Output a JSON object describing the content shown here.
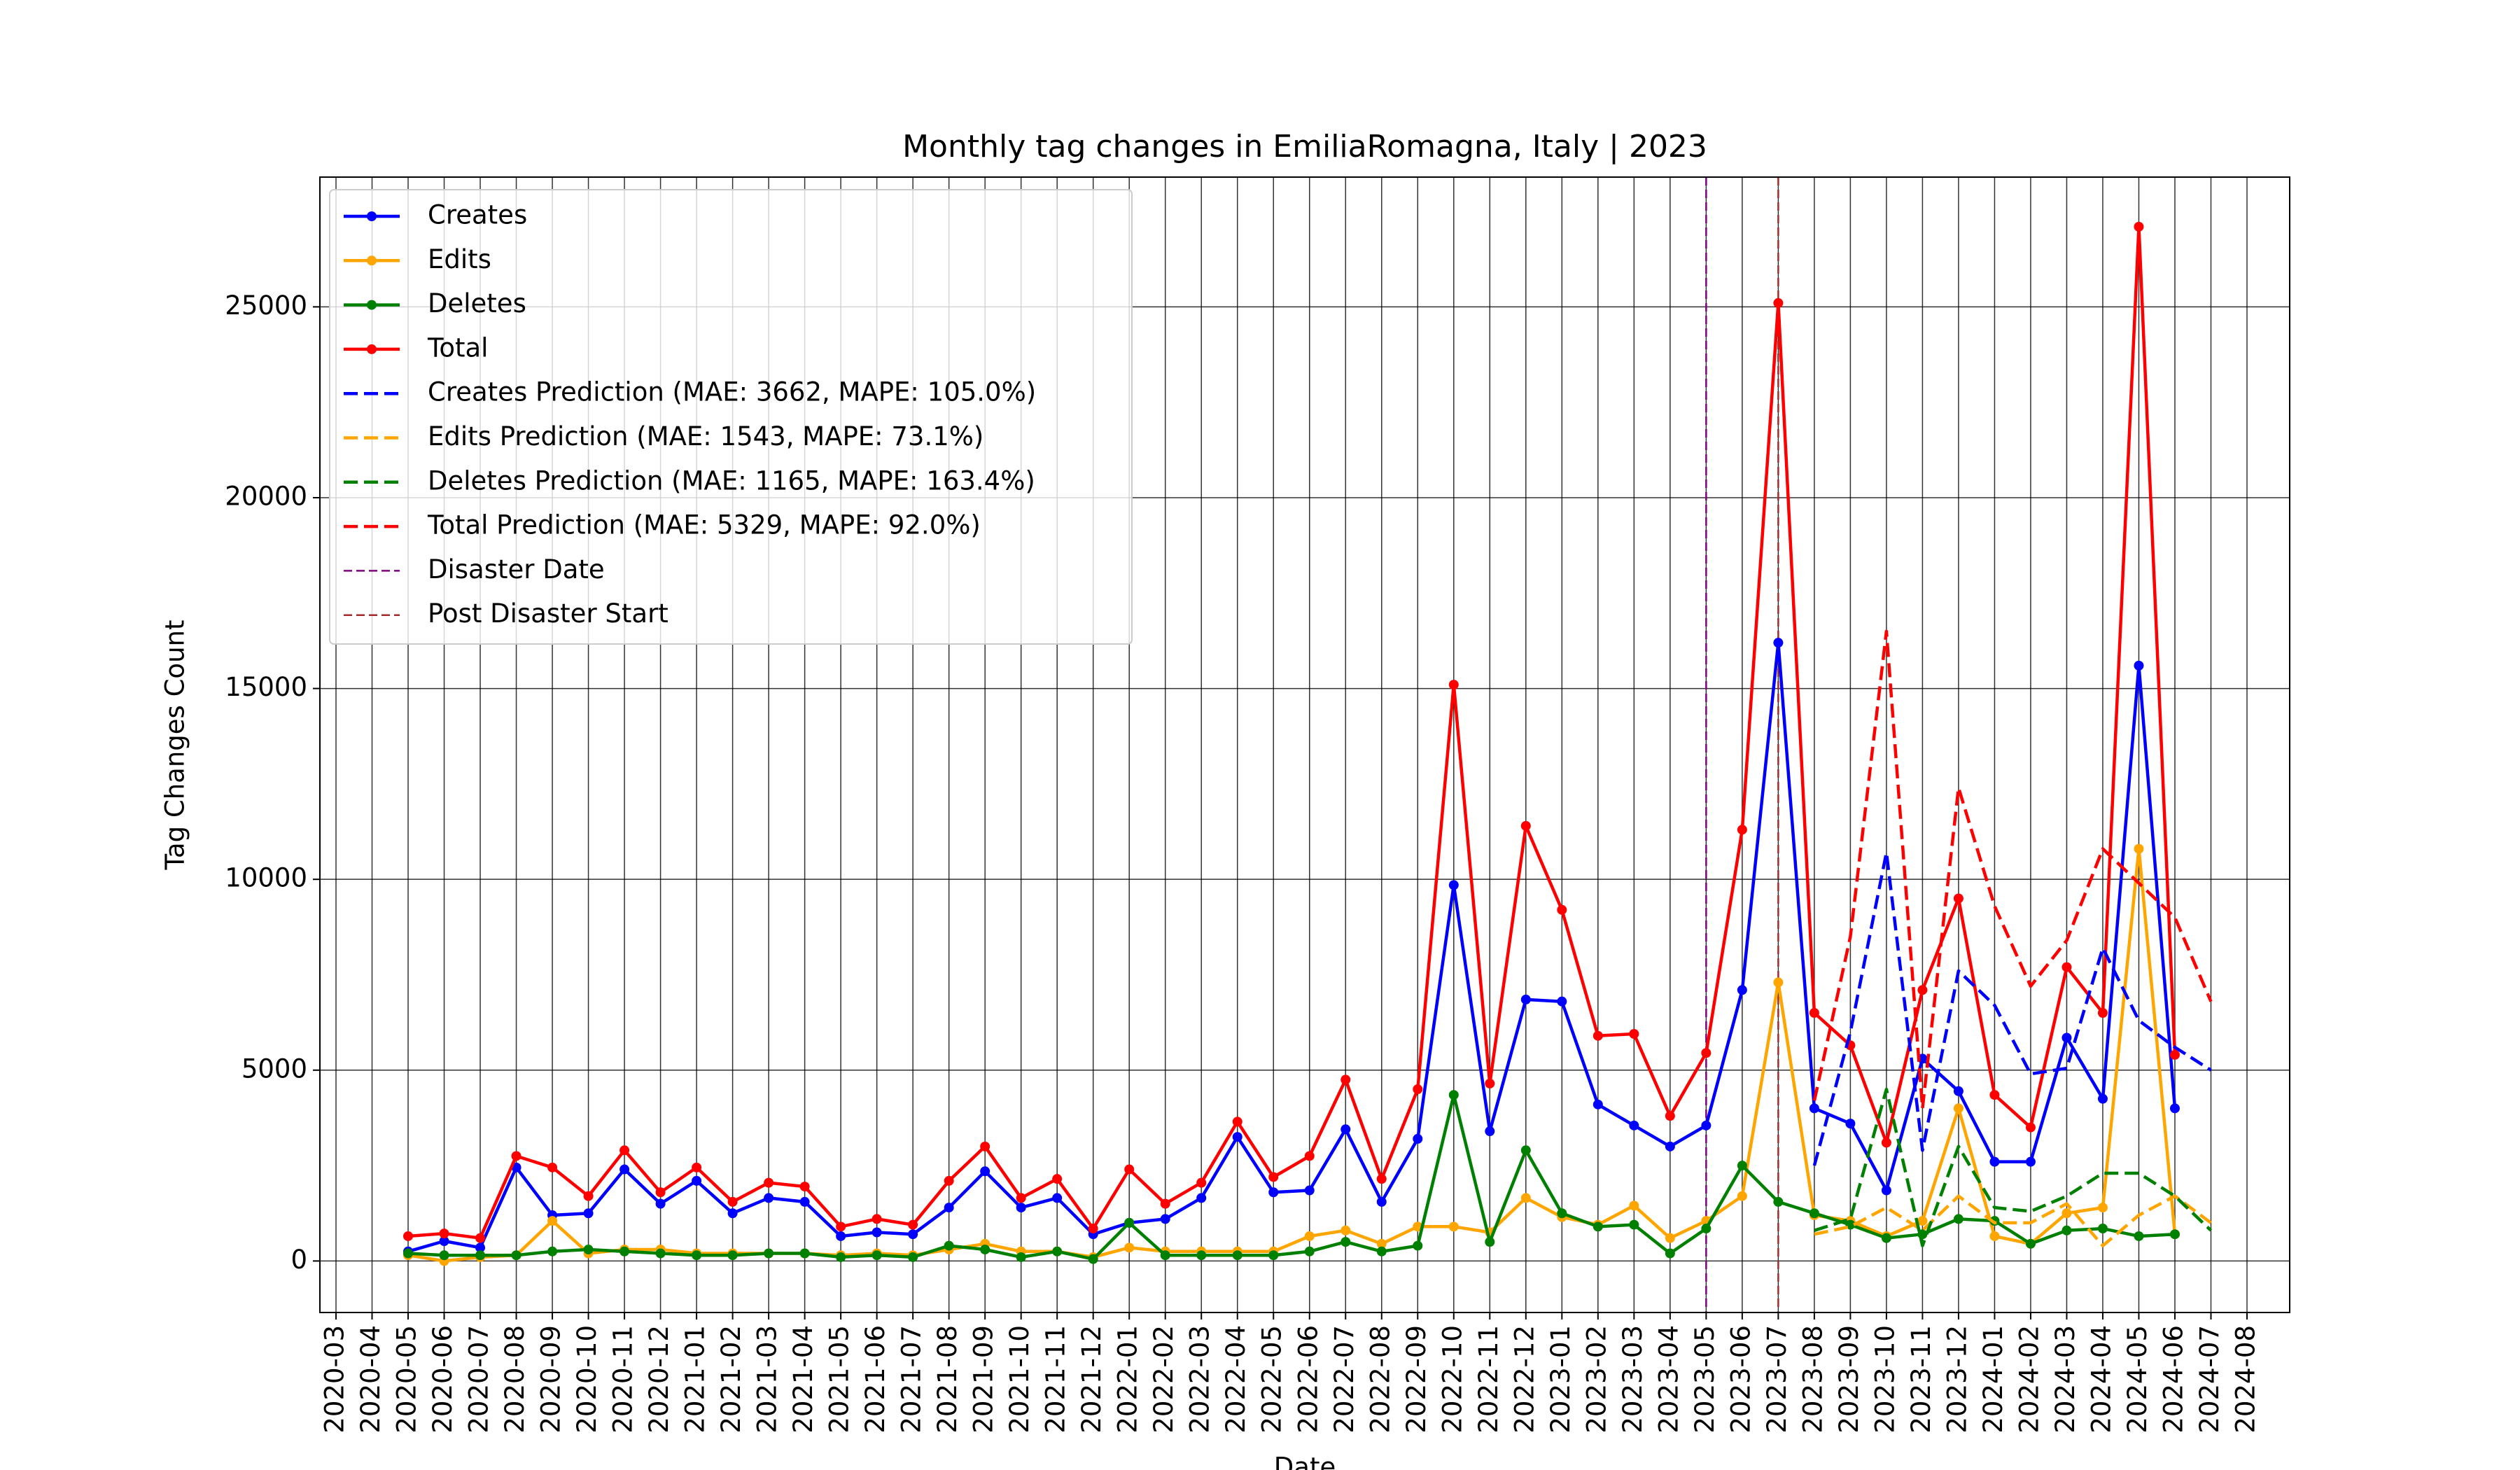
{
  "chart_data": {
    "type": "line",
    "title": "Monthly tag changes in EmiliaRomagna, Italy | 2023",
    "xlabel": "Date",
    "ylabel": "Tag Changes Count",
    "grid": true,
    "legend": "upper left",
    "xlim": [
      "2020-03",
      "2024-08"
    ],
    "xticks": [
      "2020-03",
      "2020-04",
      "2020-05",
      "2020-06",
      "2020-07",
      "2020-08",
      "2020-09",
      "2020-10",
      "2020-11",
      "2020-12",
      "2021-01",
      "2021-02",
      "2021-03",
      "2021-04",
      "2021-05",
      "2021-06",
      "2021-07",
      "2021-08",
      "2021-09",
      "2021-10",
      "2021-11",
      "2021-12",
      "2022-01",
      "2022-02",
      "2022-03",
      "2022-04",
      "2022-05",
      "2022-06",
      "2022-07",
      "2022-08",
      "2022-09",
      "2022-10",
      "2022-11",
      "2022-12",
      "2023-01",
      "2023-02",
      "2023-03",
      "2023-04",
      "2023-05",
      "2023-06",
      "2023-07",
      "2023-08",
      "2023-09",
      "2023-10",
      "2023-11",
      "2023-12",
      "2024-01",
      "2024-02",
      "2024-03",
      "2024-04",
      "2024-05",
      "2024-06",
      "2024-07",
      "2024-08"
    ],
    "ylim": [
      -1350,
      28400
    ],
    "yticks": [
      0,
      5000,
      10000,
      15000,
      20000,
      25000
    ],
    "x": [
      "2020-05",
      "2020-06",
      "2020-07",
      "2020-08",
      "2020-09",
      "2020-10",
      "2020-11",
      "2020-12",
      "2021-01",
      "2021-02",
      "2021-03",
      "2021-04",
      "2021-05",
      "2021-06",
      "2021-07",
      "2021-08",
      "2021-09",
      "2021-10",
      "2021-11",
      "2021-12",
      "2022-01",
      "2022-02",
      "2022-03",
      "2022-04",
      "2022-05",
      "2022-06",
      "2022-07",
      "2022-08",
      "2022-09",
      "2022-10",
      "2022-11",
      "2022-12",
      "2023-01",
      "2023-02",
      "2023-03",
      "2023-04",
      "2023-05",
      "2023-06",
      "2023-07",
      "2023-08",
      "2023-09",
      "2023-10",
      "2023-11",
      "2023-12",
      "2024-01",
      "2024-02",
      "2024-03",
      "2024-04",
      "2024-05",
      "2024-06"
    ],
    "series": [
      {
        "name": "Creates",
        "color": "#0000ff",
        "marker": "o",
        "values": [
          250,
          520,
          350,
          2450,
          1200,
          1250,
          2400,
          1500,
          2100,
          1250,
          1650,
          1550,
          650,
          750,
          700,
          1400,
          2350,
          1400,
          1650,
          700,
          1000,
          1100,
          1650,
          3250,
          1800,
          1850,
          3450,
          1550,
          3200,
          9850,
          3400,
          6850,
          6800,
          4100,
          3550,
          3000,
          3550,
          7100,
          16200,
          4000,
          3600,
          1850,
          5300,
          4450,
          2600,
          2600,
          5850,
          4250,
          15600,
          4000
        ]
      },
      {
        "name": "Edits",
        "color": "#ffa500",
        "marker": "o",
        "values": [
          150,
          0,
          100,
          150,
          1050,
          200,
          300,
          300,
          200,
          200,
          200,
          200,
          150,
          200,
          150,
          300,
          450,
          250,
          250,
          100,
          350,
          250,
          250,
          250,
          250,
          650,
          800,
          450,
          900,
          900,
          750,
          1650,
          1150,
          950,
          1450,
          600,
          1050,
          1700,
          7300,
          1200,
          1050,
          650,
          1050,
          4000,
          650,
          450,
          1250,
          1400,
          10800,
          700
        ]
      },
      {
        "name": "Deletes",
        "color": "#008000",
        "marker": "o",
        "values": [
          200,
          150,
          150,
          150,
          250,
          300,
          250,
          200,
          150,
          150,
          200,
          200,
          100,
          150,
          100,
          400,
          300,
          100,
          250,
          50,
          1000,
          150,
          150,
          150,
          150,
          250,
          500,
          250,
          400,
          4350,
          500,
          2900,
          1250,
          900,
          950,
          200,
          850,
          2500,
          1550,
          1250,
          950,
          600,
          700,
          1100,
          1050,
          450,
          800,
          850,
          650,
          700
        ]
      },
      {
        "name": "Total",
        "color": "#ff0000",
        "marker": "o",
        "values": [
          650,
          720,
          600,
          2750,
          2450,
          1700,
          2900,
          1800,
          2450,
          1550,
          2050,
          1950,
          900,
          1100,
          950,
          2100,
          3000,
          1650,
          2150,
          850,
          2400,
          1500,
          2050,
          3650,
          2200,
          2750,
          4750,
          2150,
          4500,
          15100,
          4650,
          11400,
          9200,
          5900,
          5950,
          3800,
          5450,
          11300,
          25100,
          6500,
          5650,
          3100,
          7100,
          9500,
          4350,
          3500,
          7700,
          6500,
          27100,
          5400
        ]
      },
      {
        "name": "Creates Prediction (MAE: 3662, MAPE: 105.0%)",
        "color": "#0000ff",
        "dashed": true,
        "x": [
          "2023-08",
          "2023-09",
          "2023-10",
          "2023-11",
          "2023-12",
          "2024-01",
          "2024-02",
          "2024-03",
          "2024-04",
          "2024-05",
          "2024-06",
          "2024-07"
        ],
        "values": [
          2500,
          6000,
          10700,
          2900,
          7600,
          6700,
          4900,
          5050,
          8200,
          6300,
          5600,
          5000
        ]
      },
      {
        "name": "Edits Prediction (MAE: 1543, MAPE: 73.1%)",
        "color": "#ffa500",
        "dashed": true,
        "x": [
          "2023-08",
          "2023-09",
          "2023-10",
          "2023-11",
          "2023-12",
          "2024-01",
          "2024-02",
          "2024-03",
          "2024-04",
          "2024-05",
          "2024-06",
          "2024-07"
        ],
        "values": [
          700,
          900,
          1400,
          800,
          1700,
          1000,
          1000,
          1500,
          400,
          1200,
          1700,
          1000
        ]
      },
      {
        "name": "Deletes Prediction (MAE: 1165, MAPE: 163.4%)",
        "color": "#008000",
        "dashed": true,
        "x": [
          "2023-08",
          "2023-09",
          "2023-10",
          "2023-11",
          "2023-12",
          "2024-01",
          "2024-02",
          "2024-03",
          "2024-04",
          "2024-05",
          "2024-06",
          "2024-07"
        ],
        "values": [
          800,
          1100,
          4500,
          400,
          3000,
          1400,
          1300,
          1700,
          2300,
          2300,
          1700,
          800
        ]
      },
      {
        "name": "Total Prediction (MAE: 5329, MAPE: 92.0%)",
        "color": "#ff0000",
        "dashed": true,
        "x": [
          "2023-08",
          "2023-09",
          "2023-10",
          "2023-11",
          "2023-12",
          "2024-01",
          "2024-02",
          "2024-03",
          "2024-04",
          "2024-05",
          "2024-06",
          "2024-07"
        ],
        "values": [
          4200,
          8500,
          16500,
          4000,
          12400,
          9300,
          7200,
          8400,
          10800,
          9900,
          9000,
          6800
        ]
      }
    ],
    "vlines": [
      {
        "name": "Disaster Date",
        "color": "#800080",
        "x": "2023-05"
      },
      {
        "name": "Post Disaster Start",
        "color": "#a52a2a",
        "x": "2023-07"
      }
    ]
  }
}
